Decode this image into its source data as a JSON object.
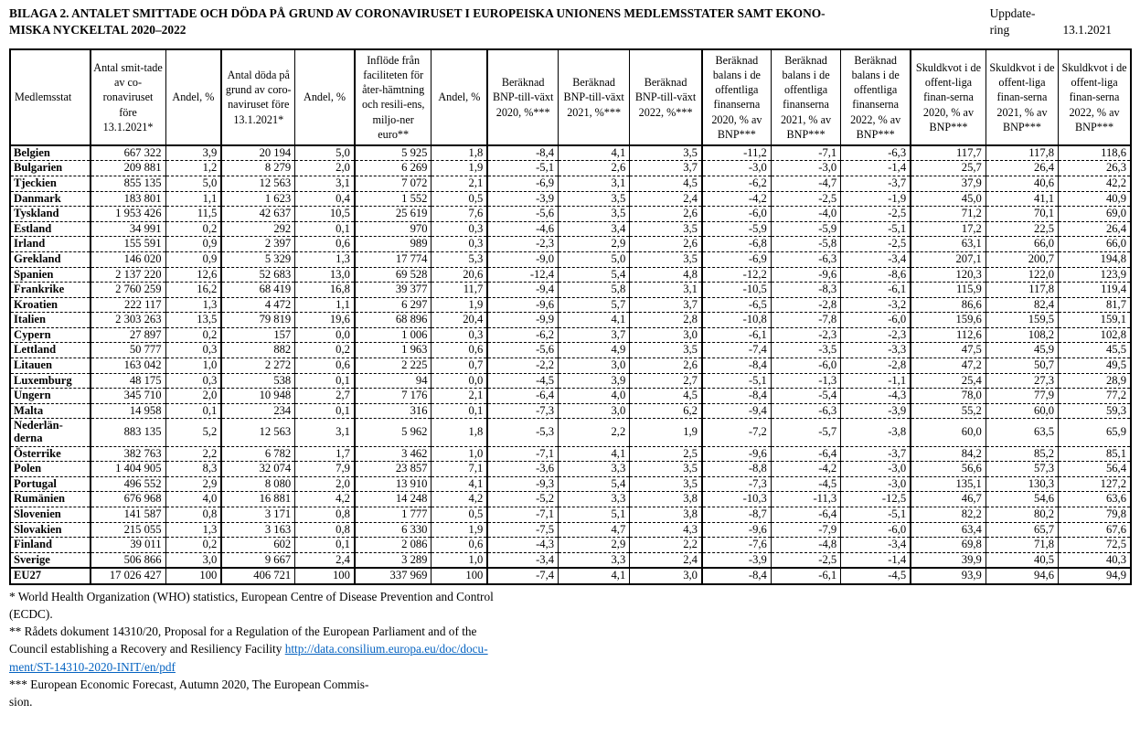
{
  "title": {
    "line1": "BILAGA 2. ANTALET SMITTADE OCH DÖDA PÅ GRUND AV CORONAVIRUSET I EUROPEISKA UNIONENS MEDLEMSSTATER SAMT EKONO-",
    "line2": "MISKA NYCKELTAL 2020–2022"
  },
  "update": {
    "label_line1": "Uppdate-",
    "label_line2": "ring",
    "date": "13.1.2021"
  },
  "table": {
    "columns": [
      "Medlemsstat",
      "Antal smit-tade av co-ronaviruset före 13.1.2021*",
      "Andel, %",
      "Antal döda på grund av coro-naviruset före 13.1.2021*",
      "Andel, %",
      "Inflöde från faciliteten för åter-hämtning och resili-ens, miljo-ner euro**",
      "Andel, %",
      "Beräknad BNP-till-växt 2020, %***",
      "Beräknad BNP-till-växt 2021, %***",
      "Beräknad BNP-till-växt 2022, %***",
      "Beräknad balans i de offentliga finanserna 2020, % av BNP***",
      "Beräknad balans i de offentliga finanserna 2021, % av BNP***",
      "Beräknad balans i de offentliga finanserna 2022, % av BNP***",
      "Skuldkvot i de offent-liga finan-serna 2020, % av BNP***",
      "Skuldkvot i de offent-liga finan-serna 2021, % av BNP***",
      "Skuldkvot i de offent-liga finan-serna 2022, % av BNP***"
    ],
    "rows": [
      {
        "name": "Belgien",
        "values": [
          "667 322",
          "3,9",
          "20 194",
          "5,0",
          "5 925",
          "1,8",
          "-8,4",
          "4,1",
          "3,5",
          "-11,2",
          "-7,1",
          "-6,3",
          "117,7",
          "117,8",
          "118,6"
        ]
      },
      {
        "name": "Bulgarien",
        "values": [
          "209 881",
          "1,2",
          "8 279",
          "2,0",
          "6 269",
          "1,9",
          "-5,1",
          "2,6",
          "3,7",
          "-3,0",
          "-3,0",
          "-1,4",
          "25,7",
          "26,4",
          "26,3"
        ]
      },
      {
        "name": "Tjeckien",
        "values": [
          "855 135",
          "5,0",
          "12 563",
          "3,1",
          "7 072",
          "2,1",
          "-6,9",
          "3,1",
          "4,5",
          "-6,2",
          "-4,7",
          "-3,7",
          "37,9",
          "40,6",
          "42,2"
        ]
      },
      {
        "name": "Danmark",
        "values": [
          "183 801",
          "1,1",
          "1 623",
          "0,4",
          "1 552",
          "0,5",
          "-3,9",
          "3,5",
          "2,4",
          "-4,2",
          "-2,5",
          "-1,9",
          "45,0",
          "41,1",
          "40,9"
        ]
      },
      {
        "name": "Tyskland",
        "values": [
          "1 953 426",
          "11,5",
          "42 637",
          "10,5",
          "25 619",
          "7,6",
          "-5,6",
          "3,5",
          "2,6",
          "-6,0",
          "-4,0",
          "-2,5",
          "71,2",
          "70,1",
          "69,0"
        ]
      },
      {
        "name": "Estland",
        "values": [
          "34 991",
          "0,2",
          "292",
          "0,1",
          "970",
          "0,3",
          "-4,6",
          "3,4",
          "3,5",
          "-5,9",
          "-5,9",
          "-5,1",
          "17,2",
          "22,5",
          "26,4"
        ]
      },
      {
        "name": "Irland",
        "values": [
          "155 591",
          "0,9",
          "2 397",
          "0,6",
          "989",
          "0,3",
          "-2,3",
          "2,9",
          "2,6",
          "-6,8",
          "-5,8",
          "-2,5",
          "63,1",
          "66,0",
          "66,0"
        ]
      },
      {
        "name": "Grekland",
        "values": [
          "146 020",
          "0,9",
          "5 329",
          "1,3",
          "17 774",
          "5,3",
          "-9,0",
          "5,0",
          "3,5",
          "-6,9",
          "-6,3",
          "-3,4",
          "207,1",
          "200,7",
          "194,8"
        ]
      },
      {
        "name": "Spanien",
        "values": [
          "2 137 220",
          "12,6",
          "52 683",
          "13,0",
          "69 528",
          "20,6",
          "-12,4",
          "5,4",
          "4,8",
          "-12,2",
          "-9,6",
          "-8,6",
          "120,3",
          "122,0",
          "123,9"
        ]
      },
      {
        "name": "Frankrike",
        "values": [
          "2 760 259",
          "16,2",
          "68 419",
          "16,8",
          "39 377",
          "11,7",
          "-9,4",
          "5,8",
          "3,1",
          "-10,5",
          "-8,3",
          "-6,1",
          "115,9",
          "117,8",
          "119,4"
        ]
      },
      {
        "name": "Kroatien",
        "values": [
          "222 117",
          "1,3",
          "4 472",
          "1,1",
          "6 297",
          "1,9",
          "-9,6",
          "5,7",
          "3,7",
          "-6,5",
          "-2,8",
          "-3,2",
          "86,6",
          "82,4",
          "81,7"
        ]
      },
      {
        "name": "Italien",
        "values": [
          "2 303 263",
          "13,5",
          "79 819",
          "19,6",
          "68 896",
          "20,4",
          "-9,9",
          "4,1",
          "2,8",
          "-10,8",
          "-7,8",
          "-6,0",
          "159,6",
          "159,5",
          "159,1"
        ]
      },
      {
        "name": "Cypern",
        "values": [
          "27 897",
          "0,2",
          "157",
          "0,0",
          "1 006",
          "0,3",
          "-6,2",
          "3,7",
          "3,0",
          "-6,1",
          "-2,3",
          "-2,3",
          "112,6",
          "108,2",
          "102,8"
        ]
      },
      {
        "name": "Lettland",
        "values": [
          "50 777",
          "0,3",
          "882",
          "0,2",
          "1 963",
          "0,6",
          "-5,6",
          "4,9",
          "3,5",
          "-7,4",
          "-3,5",
          "-3,3",
          "47,5",
          "45,9",
          "45,5"
        ]
      },
      {
        "name": "Litauen",
        "values": [
          "163 042",
          "1,0",
          "2 272",
          "0,6",
          "2 225",
          "0,7",
          "-2,2",
          "3,0",
          "2,6",
          "-8,4",
          "-6,0",
          "-2,8",
          "47,2",
          "50,7",
          "49,5"
        ]
      },
      {
        "name": "Luxemburg",
        "values": [
          "48 175",
          "0,3",
          "538",
          "0,1",
          "94",
          "0,0",
          "-4,5",
          "3,9",
          "2,7",
          "-5,1",
          "-1,3",
          "-1,1",
          "25,4",
          "27,3",
          "28,9"
        ]
      },
      {
        "name": "Ungern",
        "values": [
          "345 710",
          "2,0",
          "10 948",
          "2,7",
          "7 176",
          "2,1",
          "-6,4",
          "4,0",
          "4,5",
          "-8,4",
          "-5,4",
          "-4,3",
          "78,0",
          "77,9",
          "77,2"
        ]
      },
      {
        "name": "Malta",
        "values": [
          "14 958",
          "0,1",
          "234",
          "0,1",
          "316",
          "0,1",
          "-7,3",
          "3,0",
          "6,2",
          "-9,4",
          "-6,3",
          "-3,9",
          "55,2",
          "60,0",
          "59,3"
        ]
      },
      {
        "name": "Nederlän-derna",
        "values": [
          "883 135",
          "5,2",
          "12 563",
          "3,1",
          "5 962",
          "1,8",
          "-5,3",
          "2,2",
          "1,9",
          "-7,2",
          "-5,7",
          "-3,8",
          "60,0",
          "63,5",
          "65,9"
        ]
      },
      {
        "name": "Österrike",
        "values": [
          "382 763",
          "2,2",
          "6 782",
          "1,7",
          "3 462",
          "1,0",
          "-7,1",
          "4,1",
          "2,5",
          "-9,6",
          "-6,4",
          "-3,7",
          "84,2",
          "85,2",
          "85,1"
        ]
      },
      {
        "name": "Polen",
        "values": [
          "1 404 905",
          "8,3",
          "32 074",
          "7,9",
          "23 857",
          "7,1",
          "-3,6",
          "3,3",
          "3,5",
          "-8,8",
          "-4,2",
          "-3,0",
          "56,6",
          "57,3",
          "56,4"
        ]
      },
      {
        "name": "Portugal",
        "values": [
          "496 552",
          "2,9",
          "8 080",
          "2,0",
          "13 910",
          "4,1",
          "-9,3",
          "5,4",
          "3,5",
          "-7,3",
          "-4,5",
          "-3,0",
          "135,1",
          "130,3",
          "127,2"
        ]
      },
      {
        "name": "Rumänien",
        "values": [
          "676 968",
          "4,0",
          "16 881",
          "4,2",
          "14 248",
          "4,2",
          "-5,2",
          "3,3",
          "3,8",
          "-10,3",
          "-11,3",
          "-12,5",
          "46,7",
          "54,6",
          "63,6"
        ]
      },
      {
        "name": "Slovenien",
        "values": [
          "141 587",
          "0,8",
          "3 171",
          "0,8",
          "1 777",
          "0,5",
          "-7,1",
          "5,1",
          "3,8",
          "-8,7",
          "-6,4",
          "-5,1",
          "82,2",
          "80,2",
          "79,8"
        ]
      },
      {
        "name": "Slovakien",
        "values": [
          "215 055",
          "1,3",
          "3 163",
          "0,8",
          "6 330",
          "1,9",
          "-7,5",
          "4,7",
          "4,3",
          "-9,6",
          "-7,9",
          "-6,0",
          "63,4",
          "65,7",
          "67,6"
        ]
      },
      {
        "name": "Finland",
        "values": [
          "39 011",
          "0,2",
          "602",
          "0,1",
          "2 086",
          "0,6",
          "-4,3",
          "2,9",
          "2,2",
          "-7,6",
          "-4,8",
          "-3,4",
          "69,8",
          "71,8",
          "72,5"
        ]
      },
      {
        "name": "Sverige",
        "values": [
          "506 866",
          "3,0",
          "9 667",
          "2,4",
          "3 289",
          "1,0",
          "-3,4",
          "3,3",
          "2,4",
          "-3,9",
          "-2,5",
          "-1,4",
          "39,9",
          "40,5",
          "40,3"
        ]
      }
    ],
    "total_row": {
      "name": "EU27",
      "values": [
        "17 026 427",
        "100",
        "406 721",
        "100",
        "337 969",
        "100",
        "-7,4",
        "4,1",
        "3,0",
        "-8,4",
        "-6,1",
        "-4,5",
        "93,9",
        "94,6",
        "94,9"
      ]
    }
  },
  "footnotes": {
    "fn1_line1": "* World Health Organization (WHO) statistics, European Centre of Disease Prevention and Control",
    "fn1_line2": "(ECDC).",
    "fn2_line1": "** Rådets dokument 14310/20, Proposal for a Regulation of the European Parliament and of the",
    "fn2_line2_text": "Council establishing a Recovery and Resiliency Facility ",
    "fn2_link_line1": "http://data.consilium.europa.eu/doc/docu-",
    "fn2_link_line2": "ment/ST-14310-2020-INIT/en/pdf",
    "fn3_line1": "*** European Economic Forecast, Autumn 2020, The European Commis-",
    "fn3_line2": "sion."
  }
}
